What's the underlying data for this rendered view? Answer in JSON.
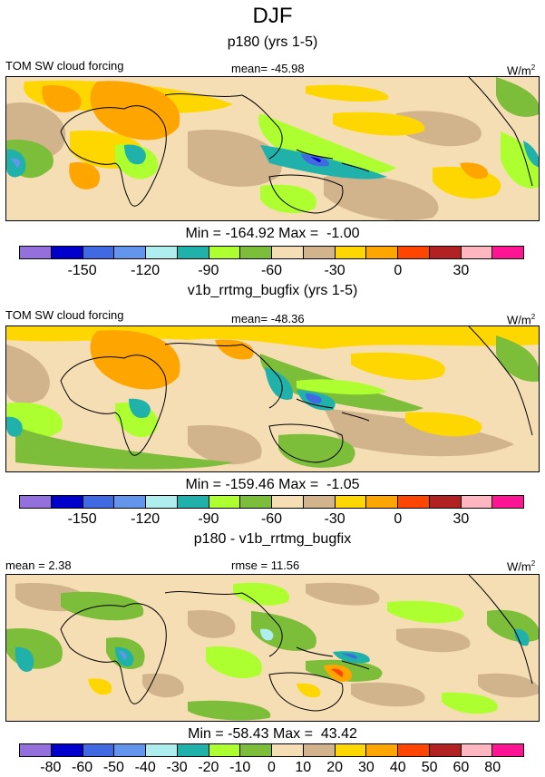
{
  "figure": {
    "title": "DJF"
  },
  "palette": [
    "#9370db",
    "#0000cd",
    "#4169e1",
    "#6495ed",
    "#afeeee",
    "#20b2aa",
    "#adff2f",
    "#7cbd3a",
    "#f5deb3",
    "#d2b48c",
    "#ffd700",
    "#ffa500",
    "#ff4500",
    "#b22222",
    "#ffb6c1",
    "#ff1493"
  ],
  "panels": [
    {
      "subtitle": "p180 (yrs 1-5)",
      "left_label": "TOM SW cloud forcing",
      "center_label": "mean= -45.98",
      "units": "W/m",
      "units_sup": "2",
      "stats": "Min = -164.92 Max =  -1.00",
      "ticks": [
        "-150",
        "-120",
        "-90",
        "-60",
        "-30",
        "0",
        "30"
      ]
    },
    {
      "subtitle": "v1b_rrtmg_bugfix (yrs 1-5)",
      "left_label": "TOM SW cloud forcing",
      "center_label": "mean= -48.36",
      "units": "W/m",
      "units_sup": "2",
      "stats": "Min = -159.46 Max =  -1.05",
      "ticks": [
        "-150",
        "-120",
        "-90",
        "-60",
        "-30",
        "0",
        "30"
      ]
    },
    {
      "subtitle": "p180 - v1b_rrtmg_bugfix",
      "left_label": "mean =   2.38",
      "center_label": "rmse =  11.56",
      "units": "W/m",
      "units_sup": "2",
      "stats": "Min = -58.43 Max =  43.42",
      "ticks": [
        "-80",
        "-60",
        "-50",
        "-40",
        "-30",
        "-20",
        "-10",
        "0",
        "10",
        "20",
        "30",
        "40",
        "50",
        "60",
        "80"
      ]
    }
  ]
}
